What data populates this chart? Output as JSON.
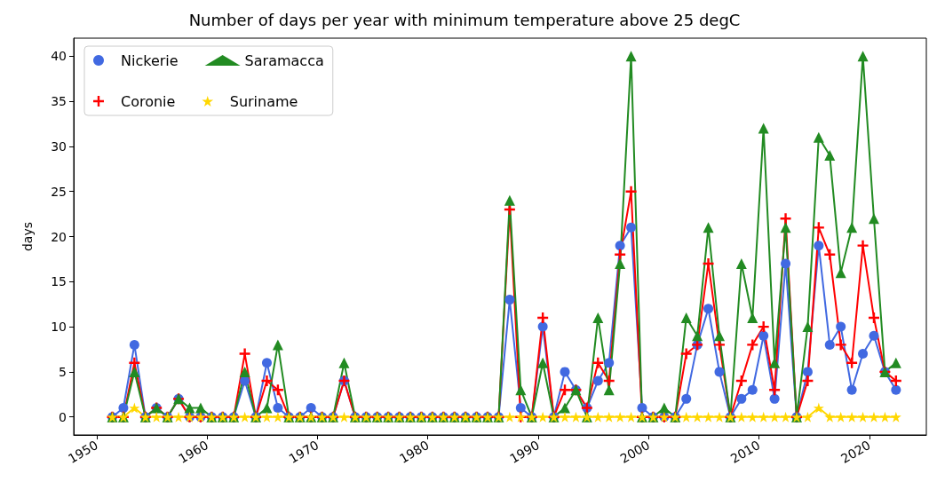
{
  "chart_data": {
    "type": "line",
    "title": "Number of days per year with minimum temperature above 25 degC",
    "ylabel": "days",
    "x": [
      "1951-06",
      "1952-06",
      "1953-06",
      "1954-06",
      "1955-06",
      "1956-06",
      "1957-06",
      "1958-06",
      "1959-06",
      "1960-06",
      "1961-06",
      "1962-06",
      "1963-06",
      "1964-06",
      "1965-06",
      "1966-06",
      "1967-06",
      "1968-06",
      "1969-06",
      "1970-06",
      "1971-06",
      "1972-06",
      "1973-06",
      "1974-06",
      "1975-06",
      "1976-06",
      "1977-06",
      "1978-06",
      "1979-06",
      "1980-06",
      "1981-06",
      "1982-06",
      "1983-06",
      "1984-06",
      "1985-06",
      "1986-06",
      "1987-06",
      "1988-06",
      "1989-06",
      "1990-06",
      "1991-06",
      "1992-06",
      "1993-06",
      "1994-06",
      "1995-06",
      "1996-06",
      "1997-06",
      "1998-06",
      "1999-06",
      "2000-06",
      "2001-06",
      "2002-06",
      "2003-06",
      "2004-06",
      "2005-06",
      "2006-06",
      "2007-06",
      "2008-06",
      "2009-06",
      "2010-06",
      "2011-06",
      "2012-06",
      "2013-06",
      "2014-06",
      "2015-06",
      "2016-06",
      "2017-06",
      "2018-06",
      "2019-06",
      "2020-06",
      "2021-06",
      "2022-06"
    ],
    "series": [
      {
        "name": "Nickerie",
        "color": "#4169e1",
        "marker": "circle",
        "values": [
          0,
          1,
          8,
          0,
          1,
          0,
          2,
          0,
          0,
          0,
          0,
          0,
          4,
          0,
          6,
          1,
          0,
          0,
          1,
          0,
          0,
          4,
          0,
          0,
          0,
          0,
          0,
          0,
          0,
          0,
          0,
          0,
          0,
          0,
          0,
          0,
          13,
          1,
          0,
          10,
          0,
          5,
          3,
          1,
          4,
          6,
          19,
          21,
          1,
          0,
          0,
          0,
          2,
          8,
          12,
          5,
          0,
          2,
          3,
          9,
          2,
          17,
          0,
          5,
          19,
          8,
          10,
          3,
          7,
          9,
          5,
          3
        ]
      },
      {
        "name": "Coronie",
        "color": "#ff0000",
        "marker": "cross",
        "values": [
          0,
          0,
          6,
          0,
          1,
          0,
          2,
          0,
          0,
          0,
          0,
          0,
          7,
          0,
          4,
          3,
          0,
          0,
          0,
          0,
          0,
          4,
          0,
          0,
          0,
          0,
          0,
          0,
          0,
          0,
          0,
          0,
          0,
          0,
          0,
          0,
          23,
          0,
          0,
          11,
          0,
          3,
          3,
          1,
          6,
          4,
          18,
          25,
          0,
          0,
          0,
          0,
          7,
          8,
          17,
          8,
          0,
          4,
          8,
          10,
          3,
          22,
          0,
          4,
          21,
          18,
          8,
          6,
          19,
          11,
          5,
          4
        ]
      },
      {
        "name": "Saramacca",
        "color": "#228b22",
        "marker": "triangle",
        "values": [
          0,
          0,
          5,
          0,
          1,
          0,
          2,
          1,
          1,
          0,
          0,
          0,
          5,
          0,
          1,
          8,
          0,
          0,
          0,
          0,
          0,
          6,
          0,
          0,
          0,
          0,
          0,
          0,
          0,
          0,
          0,
          0,
          0,
          0,
          0,
          0,
          24,
          3,
          0,
          6,
          0,
          1,
          3,
          0,
          11,
          3,
          17,
          40,
          0,
          0,
          1,
          0,
          11,
          9,
          21,
          9,
          0,
          17,
          11,
          32,
          6,
          21,
          0,
          10,
          31,
          29,
          16,
          21,
          40,
          22,
          5,
          6
        ]
      },
      {
        "name": "Suriname",
        "color": "#ffd700",
        "marker": "star",
        "values": [
          0,
          0,
          1,
          0,
          0,
          0,
          0,
          0,
          0,
          0,
          0,
          0,
          0,
          0,
          0,
          0,
          0,
          0,
          0,
          0,
          0,
          0,
          0,
          0,
          0,
          0,
          0,
          0,
          0,
          0,
          0,
          0,
          0,
          0,
          0,
          0,
          0,
          0,
          0,
          0,
          0,
          0,
          0,
          0,
          0,
          0,
          0,
          0,
          0,
          0,
          0,
          0,
          0,
          0,
          0,
          0,
          0,
          0,
          0,
          0,
          0,
          0,
          0,
          0,
          1,
          0,
          0,
          0,
          0,
          0,
          0,
          0
        ]
      }
    ],
    "xlim": [
      "1947-12",
      "2025-03"
    ],
    "xticks": [
      "1950",
      "1960",
      "1970",
      "1980",
      "1990",
      "2000",
      "2010",
      "2020"
    ],
    "ylim": [
      -2,
      42
    ],
    "yticks": [
      0,
      5,
      10,
      15,
      20,
      25,
      30,
      35,
      40
    ],
    "grid": false,
    "legend": "top left",
    "line_style": "solid"
  }
}
